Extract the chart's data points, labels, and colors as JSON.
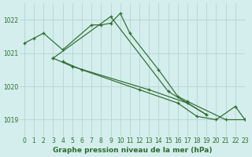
{
  "background_color": "#d4eeed",
  "grid_color": "#b8d8d4",
  "line_color": "#2d6b2d",
  "xlabel": "Graphe pression niveau de la mer (hPa)",
  "ylim": [
    1018.5,
    1022.5
  ],
  "xlim": [
    -0.5,
    23
  ],
  "yticks": [
    1019,
    1020,
    1021,
    1022
  ],
  "xticks": [
    0,
    1,
    2,
    3,
    4,
    5,
    6,
    7,
    8,
    9,
    10,
    11,
    12,
    13,
    14,
    15,
    16,
    17,
    18,
    19,
    20,
    21,
    22,
    23
  ],
  "series": [
    {
      "x": [
        0,
        1,
        2,
        4,
        7,
        8,
        9,
        10,
        11,
        14,
        16,
        17,
        21,
        23
      ],
      "y": [
        1021.3,
        1021.45,
        1021.6,
        1021.1,
        1021.85,
        1021.85,
        1021.9,
        1022.2,
        1021.6,
        1020.5,
        1019.7,
        1019.55,
        1019.0,
        1019.0
      ]
    },
    {
      "x": [
        3,
        9,
        15,
        19
      ],
      "y": [
        1020.85,
        1022.1,
        1019.85,
        1019.15
      ]
    },
    {
      "x": [
        3,
        5,
        13,
        17,
        19
      ],
      "y": [
        1020.85,
        1020.6,
        1019.9,
        1019.5,
        1019.15
      ]
    },
    {
      "x": [
        4,
        6,
        12,
        16,
        18,
        20,
        22,
        23
      ],
      "y": [
        1020.75,
        1020.5,
        1019.9,
        1019.5,
        1019.1,
        1019.0,
        1019.4,
        1019.0
      ]
    }
  ]
}
